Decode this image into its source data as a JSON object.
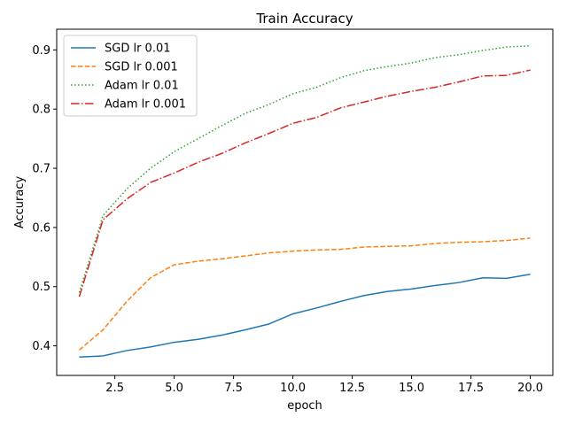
{
  "chart_data": {
    "type": "line",
    "title": "Train Accuracy",
    "xlabel": "epoch",
    "ylabel": "Accuracy",
    "xlim": [
      0.05,
      20.95
    ],
    "ylim": [
      0.35,
      0.935
    ],
    "xticks": [
      2.5,
      5.0,
      7.5,
      10.0,
      12.5,
      15.0,
      17.5,
      20.0
    ],
    "xtick_labels": [
      "2.5",
      "5.0",
      "7.5",
      "10.0",
      "12.5",
      "15.0",
      "17.5",
      "20.0"
    ],
    "yticks": [
      0.4,
      0.5,
      0.6,
      0.7,
      0.8,
      0.9
    ],
    "ytick_labels": [
      "0.4",
      "0.5",
      "0.6",
      "0.7",
      "0.8",
      "0.9"
    ],
    "grid": false,
    "legend_position": "top-left",
    "x": [
      1,
      2,
      3,
      4,
      5,
      6,
      7,
      8,
      9,
      10,
      11,
      12,
      13,
      14,
      15,
      16,
      17,
      18,
      19,
      20
    ],
    "series": [
      {
        "name": "SGD lr 0.01",
        "color": "#1f77b4",
        "dash": "solid",
        "values": [
          0.381,
          0.383,
          0.392,
          0.398,
          0.406,
          0.411,
          0.418,
          0.427,
          0.437,
          0.454,
          0.464,
          0.475,
          0.485,
          0.492,
          0.496,
          0.502,
          0.507,
          0.515,
          0.514,
          0.521
        ]
      },
      {
        "name": "SGD lr 0.001",
        "color": "#ff7f0e",
        "dash": "dashed",
        "values": [
          0.393,
          0.427,
          0.475,
          0.515,
          0.537,
          0.543,
          0.547,
          0.552,
          0.557,
          0.56,
          0.562,
          0.563,
          0.567,
          0.568,
          0.569,
          0.573,
          0.575,
          0.576,
          0.578,
          0.582
        ]
      },
      {
        "name": "Adam lr 0.01",
        "color": "#2ca02c",
        "dash": "dotted",
        "values": [
          0.49,
          0.62,
          0.665,
          0.7,
          0.728,
          0.75,
          0.772,
          0.793,
          0.808,
          0.826,
          0.837,
          0.853,
          0.865,
          0.872,
          0.878,
          0.887,
          0.892,
          0.899,
          0.905,
          0.907
        ]
      },
      {
        "name": "Adam lr 0.001",
        "color": "#d62728",
        "dash": "dashdot",
        "values": [
          0.483,
          0.613,
          0.648,
          0.676,
          0.692,
          0.71,
          0.725,
          0.743,
          0.759,
          0.776,
          0.786,
          0.802,
          0.812,
          0.822,
          0.83,
          0.837,
          0.846,
          0.856,
          0.857,
          0.866
        ]
      }
    ]
  }
}
